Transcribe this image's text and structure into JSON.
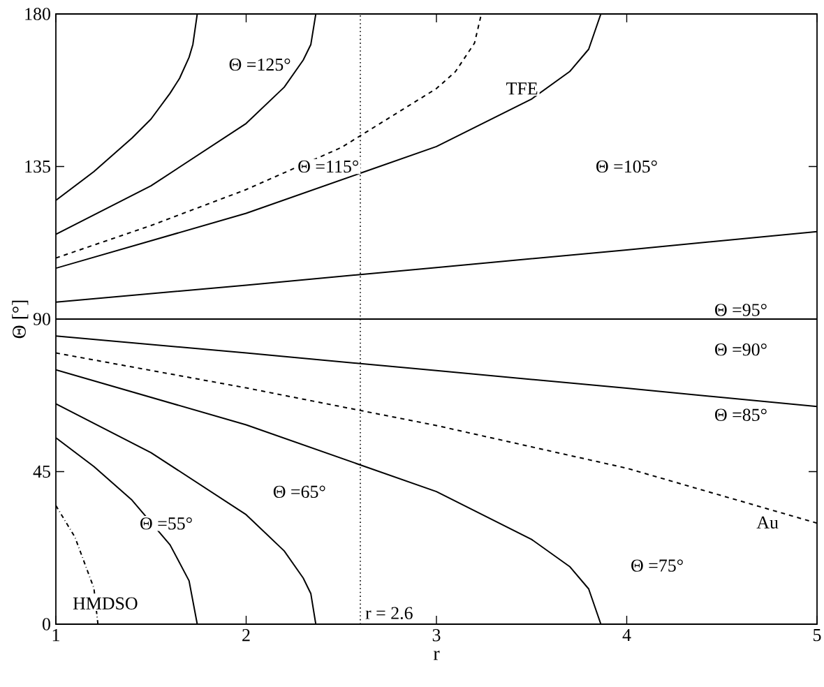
{
  "chart_data": {
    "type": "line",
    "xlabel": "r",
    "ylabel": "Θ [°]",
    "xlim": [
      1,
      5
    ],
    "ylim": [
      0,
      180
    ],
    "xticks": [
      1,
      2,
      3,
      4,
      5
    ],
    "yticks": [
      0,
      45,
      90,
      135,
      180
    ],
    "grid": false,
    "marker": "none",
    "series": [
      {
        "color": "#000000",
        "line_style": "solid",
        "x": [
          1,
          1.2,
          1.4,
          1.5,
          1.6,
          1.65,
          1.7,
          1.72,
          1.743
        ],
        "values": [
          125,
          133.5,
          143.4,
          149,
          156.6,
          161,
          167.2,
          171,
          180
        ]
      },
      {
        "color": "#000000",
        "line_style": "solid",
        "x": [
          1,
          1.5,
          2,
          2.2,
          2.3,
          2.34,
          2.366
        ],
        "values": [
          115,
          129.3,
          147.7,
          158.4,
          166.4,
          171,
          180
        ]
      },
      {
        "color": "#000000",
        "line_style": "dashed",
        "x": [
          1,
          1.5,
          2,
          2.5,
          3,
          3.1,
          3.2,
          3.236
        ],
        "values": [
          108,
          117.6,
          128.2,
          140.6,
          158,
          163,
          171.4,
          180
        ]
      },
      {
        "color": "#000000",
        "line_style": "solid",
        "x": [
          1,
          2,
          3,
          3.5,
          3.7,
          3.8,
          3.864
        ],
        "values": [
          105,
          121.2,
          140.9,
          154.9,
          163,
          169.6,
          180
        ]
      },
      {
        "color": "#000000",
        "line_style": "solid",
        "x": [
          1,
          2,
          3,
          4,
          5
        ],
        "values": [
          95,
          100,
          105.2,
          110.4,
          115.8
        ]
      },
      {
        "color": "#000000",
        "line_style": "solid",
        "x": [
          1,
          5
        ],
        "values": [
          90,
          90
        ]
      },
      {
        "color": "#000000",
        "line_style": "solid",
        "x": [
          1,
          2,
          3,
          4,
          5
        ],
        "values": [
          85,
          80,
          74.8,
          69.6,
          64.2
        ]
      },
      {
        "color": "#000000",
        "line_style": "dashed",
        "x": [
          1,
          2,
          3,
          4,
          5
        ],
        "values": [
          80,
          69.7,
          58.6,
          46,
          29.8
        ]
      },
      {
        "color": "#000000",
        "line_style": "solid",
        "x": [
          1,
          2,
          3,
          3.5,
          3.7,
          3.8,
          3.864
        ],
        "values": [
          75,
          58.8,
          39.1,
          25,
          17,
          10.4,
          0
        ]
      },
      {
        "color": "#000000",
        "line_style": "solid",
        "x": [
          1,
          1.5,
          2,
          2.2,
          2.3,
          2.34,
          2.366
        ],
        "values": [
          65,
          50.6,
          32.3,
          21.6,
          13.6,
          9,
          0
        ]
      },
      {
        "color": "#000000",
        "line_style": "solid",
        "x": [
          1,
          1.2,
          1.4,
          1.6,
          1.7,
          1.743
        ],
        "values": [
          55,
          46.5,
          36.6,
          23.4,
          12.8,
          0
        ]
      },
      {
        "color": "#000000",
        "line_style": "dashdot",
        "x": [
          1,
          1.1,
          1.2,
          1.221
        ],
        "values": [
          35,
          25.7,
          10.6,
          0
        ]
      }
    ],
    "ref_lines": [
      {
        "axis": "x",
        "value": 2.6,
        "label": "r = 2.6",
        "line_style": "dotted",
        "color": "#000000"
      }
    ],
    "annotations": [
      "Θ =125°",
      "Θ =115°",
      {
        "text": "TFE",
        "x": 3.45,
        "y": 158
      },
      "Θ =105°",
      "Θ =95°",
      "Θ =90°",
      "Θ =85°",
      {
        "text": "Au",
        "x": 4.74,
        "y": 30
      },
      "Θ =75°",
      "Θ =65°",
      "Θ =55°",
      "HMDSO"
    ]
  }
}
